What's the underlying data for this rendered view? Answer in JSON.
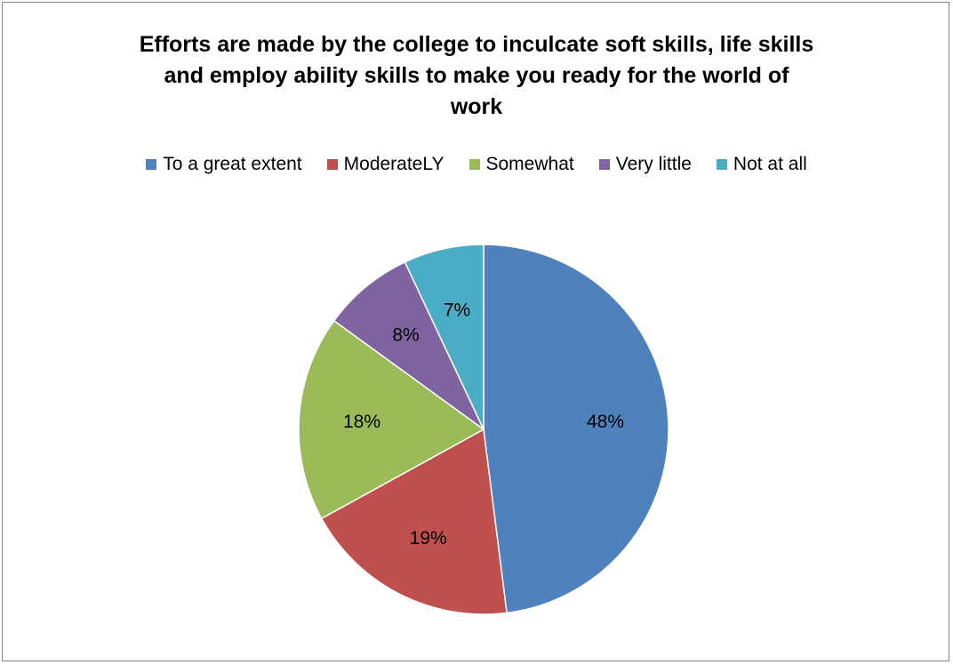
{
  "chart_data": {
    "type": "pie",
    "title_lines": [
      "Efforts are made by the college to inculcate soft skills, life skills",
      "and employ ability skills to make you ready for the world of",
      "work"
    ],
    "legend_position": "top",
    "slices": [
      {
        "name": "To a great extent",
        "value": 48,
        "label": "48%",
        "color": "#4F81BD"
      },
      {
        "name": "ModerateLY",
        "value": 19,
        "label": "19%",
        "color": "#C0504D"
      },
      {
        "name": "Somewhat",
        "value": 18,
        "label": "18%",
        "color": "#9BBB59"
      },
      {
        "name": "Very little",
        "value": 8,
        "label": "8%",
        "color": "#8064A2"
      },
      {
        "name": "Not at all",
        "value": 7,
        "label": "7%",
        "color": "#4BACC6"
      }
    ]
  }
}
